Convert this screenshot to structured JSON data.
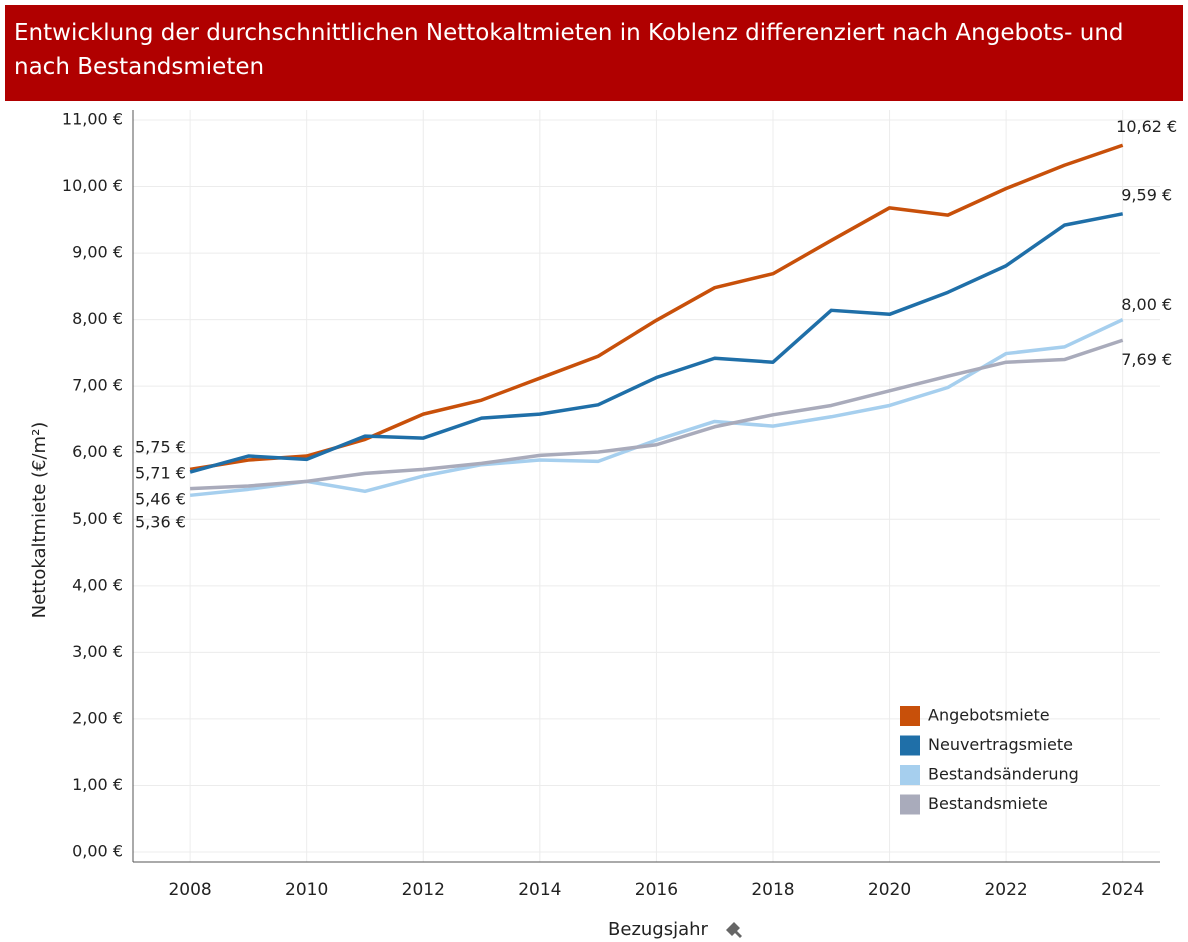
{
  "chart_data": {
    "type": "line",
    "title": "Entwicklung der durchschnittlichen Nettokaltmieten in Koblenz differenziert nach Angebots- und nach Bestandsmieten",
    "x_label": "Bezugsjahr",
    "y_label": "Nettokaltmiete (€/m²)",
    "x": [
      2008,
      2009,
      2010,
      2011,
      2012,
      2013,
      2014,
      2015,
      2016,
      2017,
      2018,
      2019,
      2020,
      2021,
      2022,
      2023,
      2024
    ],
    "series": [
      {
        "name": "Angebotsmiete",
        "color": "#c8500a",
        "values": [
          5.75,
          5.89,
          5.95,
          6.2,
          6.58,
          6.79,
          7.12,
          7.45,
          7.99,
          8.48,
          8.69,
          9.19,
          9.68,
          9.57,
          9.97,
          10.32,
          10.62
        ],
        "value_labels": [
          "5,75 €",
          null,
          null,
          null,
          null,
          null,
          null,
          null,
          null,
          null,
          null,
          null,
          null,
          null,
          null,
          null,
          "10,62 €"
        ]
      },
      {
        "name": "Neuvertragsmiete",
        "color": "#1f6fa8",
        "values": [
          5.71,
          5.95,
          5.9,
          6.25,
          6.22,
          6.52,
          6.58,
          6.72,
          7.13,
          7.42,
          7.36,
          8.14,
          8.08,
          8.41,
          8.81,
          9.42,
          9.59
        ],
        "value_labels": [
          "5,71 €",
          null,
          null,
          null,
          null,
          null,
          null,
          null,
          null,
          null,
          null,
          null,
          null,
          null,
          null,
          null,
          "9,59 €"
        ]
      },
      {
        "name": "Bestandsänderung",
        "color": "#a6cfee",
        "values": [
          5.36,
          5.45,
          5.57,
          5.42,
          5.65,
          5.82,
          5.89,
          5.87,
          6.19,
          6.47,
          6.4,
          6.54,
          6.71,
          6.98,
          7.49,
          7.59,
          8.0
        ],
        "value_labels": [
          "5,36 €",
          null,
          null,
          null,
          null,
          null,
          null,
          null,
          null,
          null,
          null,
          null,
          null,
          null,
          null,
          null,
          "8,00 €"
        ]
      },
      {
        "name": "Bestandsmiete",
        "color": "#a9abbb",
        "values": [
          5.46,
          5.5,
          5.57,
          5.69,
          5.75,
          5.84,
          5.96,
          6.01,
          6.12,
          6.39,
          6.57,
          6.71,
          6.93,
          7.15,
          7.36,
          7.4,
          7.69
        ],
        "value_labels": [
          "5,46 €",
          null,
          null,
          null,
          null,
          null,
          null,
          null,
          null,
          null,
          null,
          null,
          null,
          null,
          null,
          null,
          "7,69 €"
        ]
      }
    ],
    "xlim": [
      2007.02,
      2024.64
    ],
    "xticks": [
      2008,
      2010,
      2012,
      2014,
      2016,
      2018,
      2020,
      2022,
      2024
    ],
    "ylim": [
      -0.15,
      11.15
    ],
    "yticks": [
      {
        "value": 0,
        "label": "0,00 €"
      },
      {
        "value": 1,
        "label": "1,00 €"
      },
      {
        "value": 2,
        "label": "2,00 €"
      },
      {
        "value": 3,
        "label": "3,00 €"
      },
      {
        "value": 4,
        "label": "4,00 €"
      },
      {
        "value": 5,
        "label": "5,00 €"
      },
      {
        "value": 6,
        "label": "6,00 €"
      },
      {
        "value": 7,
        "label": "7,00 €"
      },
      {
        "value": 8,
        "label": "8,00 €"
      },
      {
        "value": 9,
        "label": "9,00 €"
      },
      {
        "value": 10,
        "label": "10,00 €"
      },
      {
        "value": 11,
        "label": "11,00 €"
      }
    ],
    "grid": true,
    "legend_position": "lower right"
  }
}
